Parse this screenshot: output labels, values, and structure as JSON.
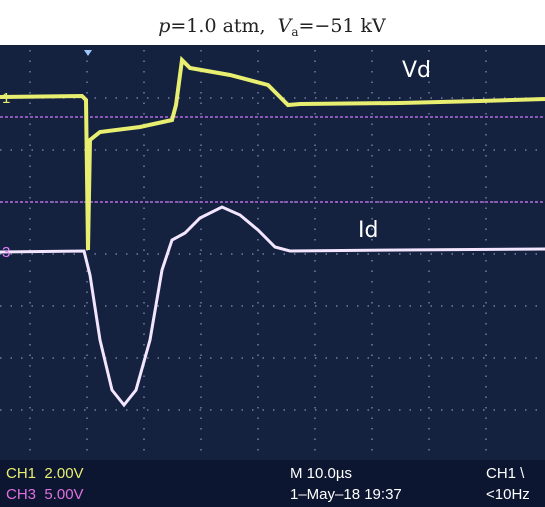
{
  "caption": {
    "p_symbol": "p",
    "part1": "=1.0 atm,",
    "v_symbol": "V",
    "v_sub": "a",
    "part2": "=−51 kV"
  },
  "trace_labels": {
    "vd": "Vd",
    "id": "Id"
  },
  "markers": {
    "ch1": "1",
    "ch3": "3"
  },
  "status": {
    "ch1_scale": "CH1  2.00V",
    "ch3_scale": "CH3  5.00V",
    "timebase": "M 10.0µs",
    "date": "1–May–18 19:37",
    "trigger": "CH1 \\",
    "freq": "<10Hz"
  }
}
